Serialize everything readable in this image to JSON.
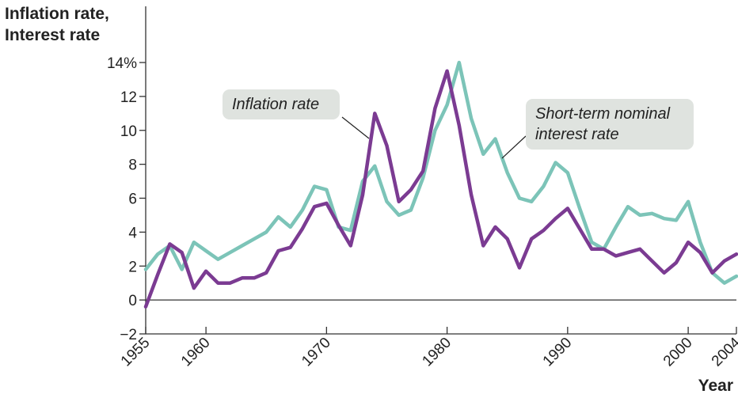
{
  "chart_data": {
    "type": "line",
    "ylabel": "Inflation rate,\nInterest rate",
    "xlabel": "Year",
    "xlim": [
      1955,
      2004
    ],
    "ylim": [
      -2,
      14
    ],
    "yticks": [
      -2,
      0,
      2,
      4,
      6,
      8,
      10,
      12,
      14
    ],
    "ytick_labels": [
      "−2",
      "0",
      "2",
      "4",
      "6",
      "8",
      "10",
      "12",
      "14%"
    ],
    "xticks": [
      1955,
      1960,
      1970,
      1980,
      1990,
      2000,
      2004
    ],
    "xtick_labels": [
      "1955",
      "1960",
      "1970",
      "1980",
      "1990",
      "2000",
      "2004"
    ],
    "grid": false,
    "series": [
      {
        "name": "Inflation rate",
        "color": "#7b3b92",
        "x": [
          1955,
          1956,
          1957,
          1958,
          1959,
          1960,
          1961,
          1962,
          1963,
          1964,
          1965,
          1966,
          1967,
          1968,
          1969,
          1970,
          1971,
          1972,
          1973,
          1974,
          1975,
          1976,
          1977,
          1978,
          1979,
          1980,
          1981,
          1982,
          1983,
          1984,
          1985,
          1986,
          1987,
          1988,
          1989,
          1990,
          1991,
          1992,
          1993,
          1994,
          1995,
          1996,
          1997,
          1998,
          1999,
          2000,
          2001,
          2002,
          2003,
          2004
        ],
        "values": [
          -0.4,
          1.5,
          3.3,
          2.8,
          0.7,
          1.7,
          1.0,
          1.0,
          1.3,
          1.3,
          1.6,
          2.9,
          3.1,
          4.2,
          5.5,
          5.7,
          4.4,
          3.2,
          6.2,
          11.0,
          9.1,
          5.8,
          6.5,
          7.6,
          11.3,
          13.5,
          10.3,
          6.2,
          3.2,
          4.3,
          3.6,
          1.9,
          3.6,
          4.1,
          4.8,
          5.4,
          4.2,
          3.0,
          3.0,
          2.6,
          2.8,
          3.0,
          2.3,
          1.6,
          2.2,
          3.4,
          2.8,
          1.6,
          2.3,
          2.7
        ]
      },
      {
        "name": "Short-term nominal interest rate",
        "color": "#7cc4b8",
        "x": [
          1955,
          1956,
          1957,
          1958,
          1959,
          1960,
          1961,
          1962,
          1963,
          1964,
          1965,
          1966,
          1967,
          1968,
          1969,
          1970,
          1971,
          1972,
          1973,
          1974,
          1975,
          1976,
          1977,
          1978,
          1979,
          1980,
          1981,
          1982,
          1983,
          1984,
          1985,
          1986,
          1987,
          1988,
          1989,
          1990,
          1991,
          1992,
          1993,
          1994,
          1995,
          1996,
          1997,
          1998,
          1999,
          2000,
          2001,
          2002,
          2003,
          2004
        ],
        "values": [
          1.8,
          2.7,
          3.2,
          1.8,
          3.4,
          2.9,
          2.4,
          2.8,
          3.2,
          3.6,
          4.0,
          4.9,
          4.3,
          5.3,
          6.7,
          6.5,
          4.3,
          4.1,
          7.0,
          7.9,
          5.8,
          5.0,
          5.3,
          7.2,
          10.0,
          11.5,
          14.0,
          10.7,
          8.6,
          9.5,
          7.5,
          6.0,
          5.8,
          6.7,
          8.1,
          7.5,
          5.4,
          3.4,
          3.0,
          4.3,
          5.5,
          5.0,
          5.1,
          4.8,
          4.7,
          5.8,
          3.4,
          1.6,
          1.0,
          1.4
        ]
      }
    ]
  },
  "labels": {
    "inflation_callout": "Inflation rate",
    "interest_callout_line1": "Short-term nominal",
    "interest_callout_line2": "interest rate"
  }
}
